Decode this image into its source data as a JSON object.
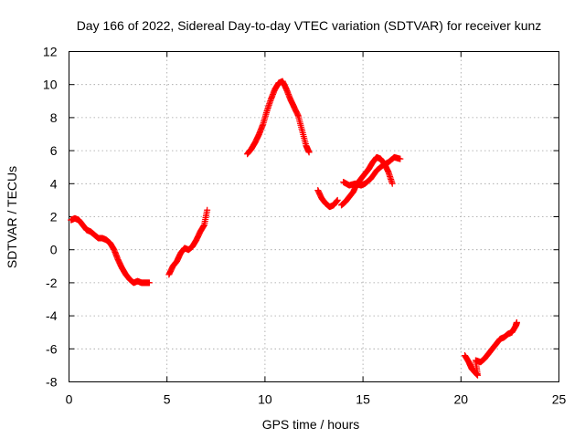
{
  "chart_data": {
    "type": "scatter",
    "title": "Day 166 of 2022, Sidereal Day-to-day VTEC variation (SDTVAR) for receiver kunz",
    "xlabel": "GPS time / hours",
    "ylabel": "SDTVAR / TECUs",
    "xlim": [
      0,
      25
    ],
    "ylim": [
      -8,
      12
    ],
    "xticks": [
      0,
      5,
      10,
      15,
      20,
      25
    ],
    "yticks": [
      -8,
      -6,
      -4,
      -2,
      0,
      2,
      4,
      6,
      8,
      10,
      12
    ],
    "grid": true,
    "marker": "+",
    "color": "#ff0000",
    "segments": [
      {
        "name": "arc-1",
        "points": [
          [
            0.1,
            1.8
          ],
          [
            0.3,
            1.9
          ],
          [
            0.5,
            1.8
          ],
          [
            0.7,
            1.5
          ],
          [
            0.9,
            1.2
          ],
          [
            1.1,
            1.1
          ],
          [
            1.3,
            0.9
          ],
          [
            1.5,
            0.7
          ],
          [
            1.7,
            0.7
          ],
          [
            1.9,
            0.6
          ],
          [
            2.1,
            0.4
          ],
          [
            2.3,
            0.0
          ],
          [
            2.5,
            -0.6
          ],
          [
            2.7,
            -1.1
          ],
          [
            2.9,
            -1.5
          ],
          [
            3.1,
            -1.8
          ],
          [
            3.3,
            -2.0
          ],
          [
            3.5,
            -1.9
          ],
          [
            3.7,
            -2.0
          ],
          [
            3.9,
            -2.0
          ],
          [
            4.1,
            -2.0
          ]
        ]
      },
      {
        "name": "arc-2",
        "points": [
          [
            5.1,
            -1.5
          ],
          [
            5.3,
            -1.0
          ],
          [
            5.5,
            -0.7
          ],
          [
            5.7,
            -0.2
          ],
          [
            5.9,
            0.1
          ],
          [
            6.1,
            0.0
          ],
          [
            6.3,
            0.2
          ],
          [
            6.5,
            0.6
          ],
          [
            6.7,
            1.1
          ],
          [
            6.9,
            1.5
          ],
          [
            7.05,
            2.4
          ]
        ]
      },
      {
        "name": "arc-3",
        "points": [
          [
            9.1,
            5.8
          ],
          [
            9.3,
            6.1
          ],
          [
            9.5,
            6.5
          ],
          [
            9.7,
            7.0
          ],
          [
            9.9,
            7.6
          ],
          [
            10.1,
            8.4
          ],
          [
            10.3,
            9.1
          ],
          [
            10.5,
            9.7
          ],
          [
            10.7,
            10.1
          ],
          [
            10.9,
            10.2
          ],
          [
            11.1,
            9.7
          ],
          [
            11.3,
            9.1
          ],
          [
            11.5,
            8.6
          ],
          [
            11.7,
            8.1
          ],
          [
            11.9,
            7.2
          ],
          [
            12.1,
            6.3
          ],
          [
            12.25,
            5.9
          ]
        ]
      },
      {
        "name": "arc-4",
        "points": [
          [
            12.7,
            3.6
          ],
          [
            12.9,
            3.1
          ],
          [
            13.1,
            2.8
          ],
          [
            13.3,
            2.6
          ],
          [
            13.5,
            2.7
          ],
          [
            13.7,
            3.0
          ]
        ]
      },
      {
        "name": "arc-5",
        "points": [
          [
            13.9,
            2.7
          ],
          [
            14.1,
            2.9
          ],
          [
            14.3,
            3.2
          ],
          [
            14.5,
            3.5
          ],
          [
            14.7,
            4.0
          ],
          [
            14.9,
            4.3
          ],
          [
            15.1,
            4.6
          ],
          [
            15.3,
            4.9
          ],
          [
            15.5,
            5.3
          ],
          [
            15.7,
            5.6
          ],
          [
            15.9,
            5.5
          ],
          [
            16.1,
            5.2
          ],
          [
            16.3,
            4.7
          ],
          [
            16.5,
            4.0
          ]
        ]
      },
      {
        "name": "arc-6",
        "points": [
          [
            14.0,
            4.1
          ],
          [
            14.3,
            3.9
          ],
          [
            14.6,
            4.0
          ],
          [
            14.9,
            3.9
          ],
          [
            15.1,
            4.0
          ],
          [
            15.4,
            4.3
          ],
          [
            15.7,
            4.8
          ],
          [
            16.0,
            5.1
          ],
          [
            16.3,
            5.3
          ],
          [
            16.6,
            5.6
          ],
          [
            16.9,
            5.5
          ]
        ]
      },
      {
        "name": "arc-7",
        "points": [
          [
            20.2,
            -6.4
          ],
          [
            20.4,
            -6.8
          ],
          [
            20.55,
            -7.2
          ],
          [
            20.7,
            -7.4
          ],
          [
            20.85,
            -7.6
          ],
          [
            20.75,
            -6.7
          ],
          [
            21.0,
            -6.8
          ],
          [
            21.2,
            -6.6
          ],
          [
            21.4,
            -6.3
          ],
          [
            21.6,
            -6.0
          ],
          [
            21.8,
            -5.7
          ],
          [
            22.0,
            -5.4
          ],
          [
            22.2,
            -5.3
          ],
          [
            22.4,
            -5.1
          ],
          [
            22.6,
            -5.0
          ],
          [
            22.8,
            -4.6
          ],
          [
            22.85,
            -4.4
          ]
        ]
      }
    ]
  }
}
